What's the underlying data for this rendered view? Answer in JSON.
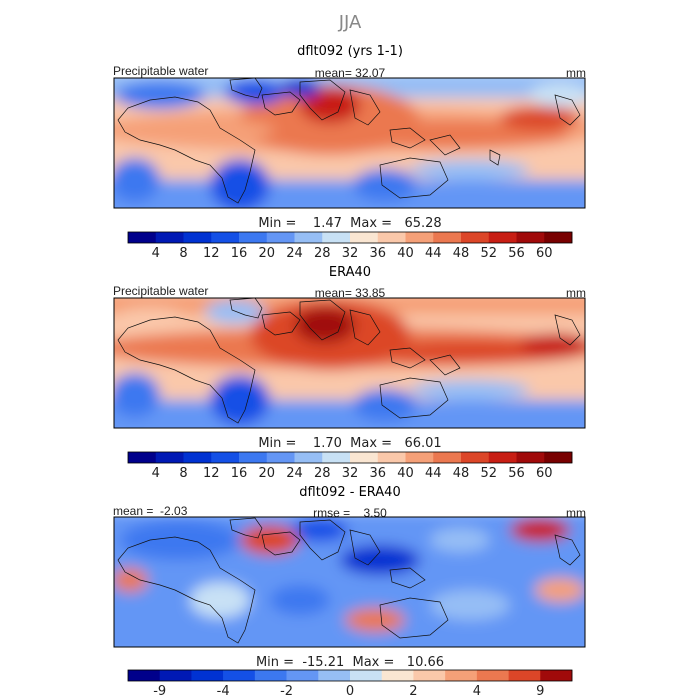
{
  "chart_data": {
    "type": "heatmap",
    "title": "JJA",
    "panels": [
      {
        "subtitle": "dflt092 (yrs 1-1)",
        "left_label": "Precipitable water",
        "center_label": "mean=  32.07",
        "right_label": "mm",
        "stats": "Min =    1.47  Max =   65.28",
        "colorbar_ticks": [
          "4",
          "8",
          "12",
          "16",
          "20",
          "24",
          "28",
          "32",
          "36",
          "40",
          "44",
          "48",
          "52",
          "56",
          "60"
        ],
        "colorbar_colors": [
          "#00008b",
          "#0019b4",
          "#0032d2",
          "#1450e6",
          "#3c78f0",
          "#6496f5",
          "#96bef5",
          "#c8e1f5",
          "#fae6d2",
          "#fac8aa",
          "#f5a078",
          "#eb7850",
          "#dc4628",
          "#c81e14",
          "#a00a0a",
          "#780000"
        ],
        "field_mean": 32.07
      },
      {
        "subtitle": "ERA40",
        "left_label": "Precipitable water",
        "center_label": "mean=  33.85",
        "right_label": "mm",
        "stats": "Min =    1.70  Max =   66.01",
        "colorbar_ticks": [
          "4",
          "8",
          "12",
          "16",
          "20",
          "24",
          "28",
          "32",
          "36",
          "40",
          "44",
          "48",
          "52",
          "56",
          "60"
        ],
        "colorbar_colors": [
          "#00008b",
          "#0019b4",
          "#0032d2",
          "#1450e6",
          "#3c78f0",
          "#6496f5",
          "#96bef5",
          "#c8e1f5",
          "#fae6d2",
          "#fac8aa",
          "#f5a078",
          "#eb7850",
          "#dc4628",
          "#c81e14",
          "#a00a0a",
          "#780000"
        ],
        "field_mean": 33.85
      },
      {
        "subtitle": "dflt092 - ERA40",
        "left_label": "mean =  -2.03",
        "center_label": "rmse =    3.50",
        "right_label": "mm",
        "stats": "Min =  -15.21  Max =   10.66",
        "colorbar_ticks": [
          "-9",
          "",
          "-4",
          "",
          "-2",
          "",
          "0",
          "",
          "2",
          "",
          "4",
          "",
          "9"
        ],
        "colorbar_colors": [
          "#00008b",
          "#0019b4",
          "#0032d2",
          "#1450e6",
          "#3c78f0",
          "#6496f5",
          "#96bef5",
          "#c8e1f5",
          "#fae6d2",
          "#fac8aa",
          "#f5a078",
          "#eb7850",
          "#dc4628",
          "#a00a0a"
        ],
        "field_mean": -2.03
      }
    ]
  }
}
